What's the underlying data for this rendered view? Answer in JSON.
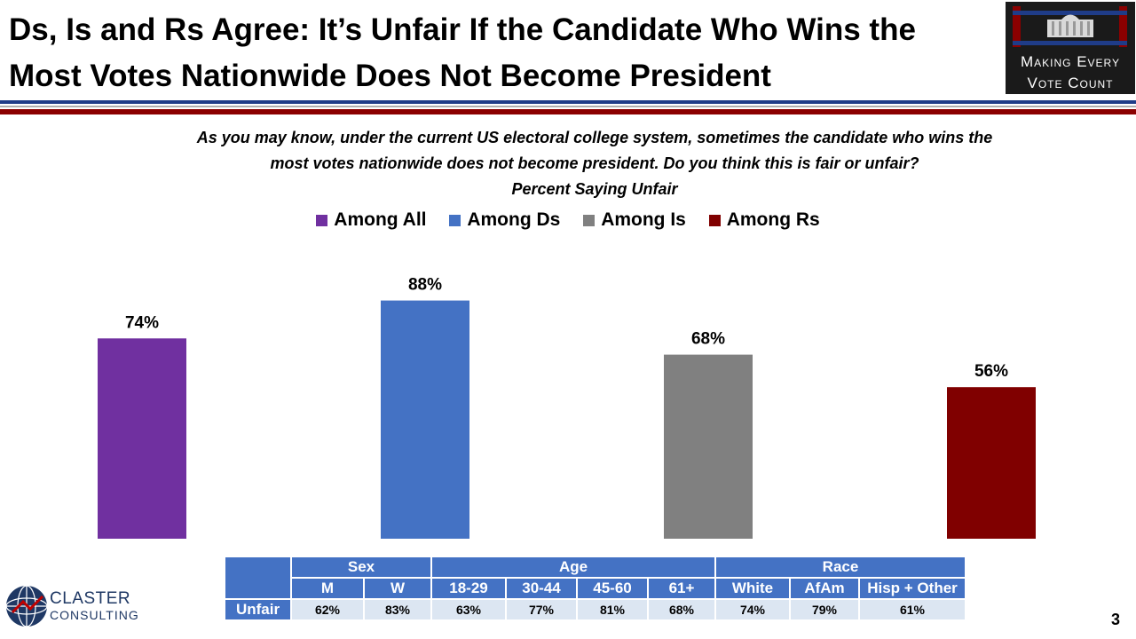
{
  "title_line1": "Ds, Is and Rs Agree: It’s Unfair If the Candidate Who Wins the",
  "title_line2": "Most Votes Nationwide Does Not Become President",
  "logo_line1": "Making Every",
  "logo_line2": "Vote Count",
  "question_line1": "As you may know, under the current US electoral college system, sometimes the candidate who wins the",
  "question_line2": "most votes nationwide does not become president. Do you think this is fair or unfair?",
  "subtitle": "Percent Saying Unfair",
  "colors": {
    "all": "#7030a0",
    "ds": "#4472c4",
    "is": "#808080",
    "rs": "#800000",
    "table_header": "#4472c4",
    "table_cell": "#dce6f2",
    "rule_blue": "#1f3c88",
    "rule_red": "#8b0000"
  },
  "chart_data": {
    "type": "bar",
    "categories": [
      "Among All",
      "Among Ds",
      "Among Is",
      "Among Rs"
    ],
    "values": [
      74,
      88,
      68,
      56
    ],
    "value_labels": [
      "74%",
      "88%",
      "68%",
      "56%"
    ],
    "colors": [
      "#7030a0",
      "#4472c4",
      "#808080",
      "#800000"
    ],
    "title": "Percent Saying Unfair",
    "ylim": [
      0,
      100
    ],
    "grid": false,
    "legend": "top-center"
  },
  "table": {
    "groups": [
      "Sex",
      "Age",
      "Race"
    ],
    "columns": [
      "M",
      "W",
      "18-29",
      "30-44",
      "45-60",
      "61+",
      "White",
      "AfAm",
      "Hisp + Other"
    ],
    "row_label": "Unfair",
    "values": [
      "62%",
      "83%",
      "63%",
      "77%",
      "81%",
      "68%",
      "74%",
      "79%",
      "61%"
    ]
  },
  "footer": {
    "company_name": "CLASTER",
    "company_sub": "CONSULTING",
    "page_number": "3"
  }
}
